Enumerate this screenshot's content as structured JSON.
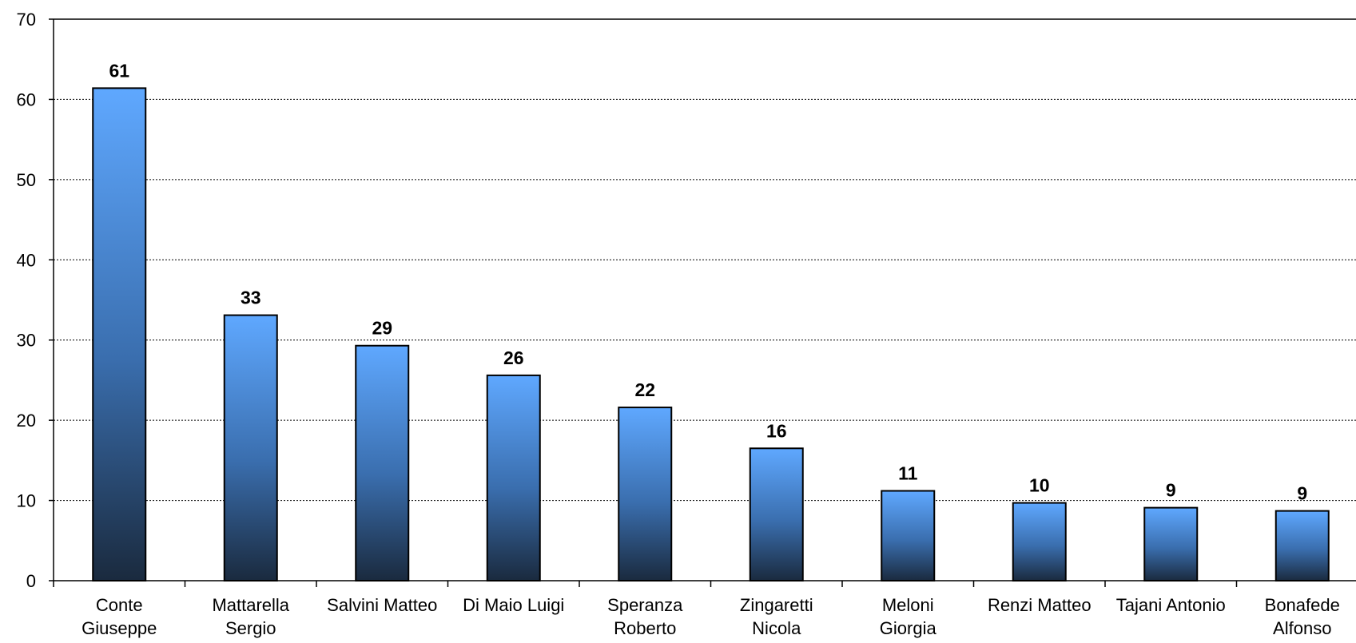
{
  "chart_data": {
    "type": "bar",
    "title": "",
    "xlabel": "",
    "ylabel": "",
    "categories": [
      [
        "Conte",
        "Giuseppe"
      ],
      [
        "Mattarella",
        "Sergio"
      ],
      [
        "Salvini Matteo"
      ],
      [
        "Di Maio Luigi"
      ],
      [
        "Speranza",
        "Roberto"
      ],
      [
        "Zingaretti",
        "Nicola"
      ],
      [
        "Meloni",
        "Giorgia"
      ],
      [
        "Renzi Matteo"
      ],
      [
        "Tajani Antonio"
      ],
      [
        "Bonafede",
        "Alfonso"
      ]
    ],
    "values": [
      61.4,
      33.1,
      29.3,
      25.6,
      21.6,
      16.5,
      11.2,
      9.7,
      9.1,
      8.7
    ],
    "data_labels": [
      "61",
      "33",
      "29",
      "26",
      "22",
      "16",
      "11",
      "10",
      "9",
      "9"
    ],
    "ylim": [
      0,
      70
    ],
    "yticks": [
      0,
      10,
      20,
      30,
      40,
      50,
      60,
      70
    ],
    "grid": true,
    "legend": "none",
    "colors": {
      "bar_top": "#5fa8ff",
      "bar_bottom": "#1a2a3e",
      "outline": "#000000"
    }
  }
}
